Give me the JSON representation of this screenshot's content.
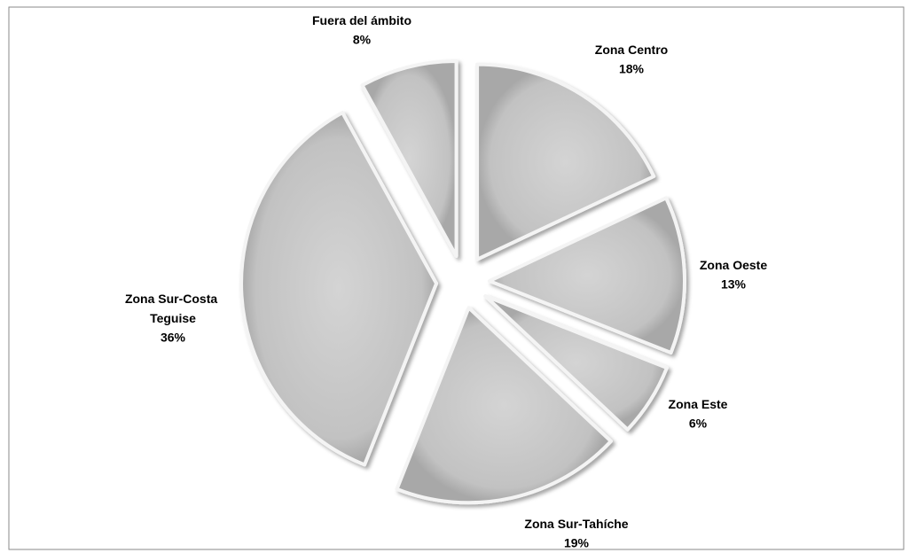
{
  "chart_data": {
    "type": "pie",
    "categories": [
      "Zona Centro",
      "Zona Oeste",
      "Zona Este",
      "Zona Sur-Tahíche",
      "Zona Sur-Costa Teguise",
      "Fuera del ámbito"
    ],
    "values": [
      18,
      13,
      6,
      19,
      36,
      8
    ],
    "value_labels": [
      "18%",
      "13%",
      "6%",
      "19%",
      "36%",
      "8%"
    ],
    "color": "#c4c4c4",
    "exploded": true
  }
}
